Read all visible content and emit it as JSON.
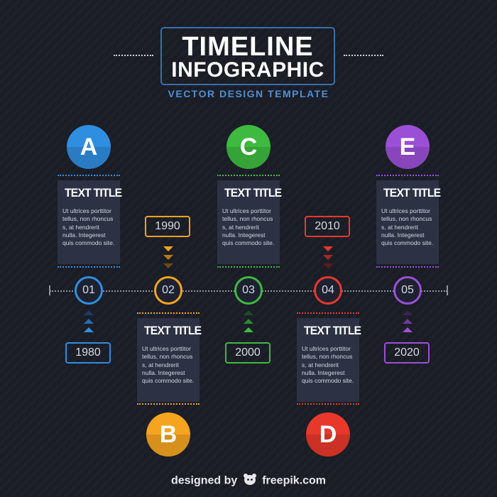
{
  "header": {
    "title_line1": "TIMELINE",
    "title_line2": "INFOGRAPHIC",
    "subtitle": "VECTOR DESIGN TEMPLATE"
  },
  "colors": {
    "background": "#1a1d26",
    "card": "#2c3244",
    "blue": "#2f8ee0",
    "orange": "#f5a41f",
    "green": "#3dba3f",
    "red": "#e8382b",
    "purple": "#9b4fd6"
  },
  "steps": [
    {
      "letter": "A",
      "number": "01",
      "year": "1980",
      "color": "#2f8ee0",
      "title": "TEXT TITLE",
      "body": "Ut ultrices porttitor tellus, non rhoncus s, at hendrerit nulla. Integerest quis commodo site."
    },
    {
      "letter": "B",
      "number": "02",
      "year": "1990",
      "color": "#f5a41f",
      "title": "TEXT TITLE",
      "body": "Ut ultrices porttitor tellus, non rhoncus s, at hendrerit nulla. Integerest quis commodo site."
    },
    {
      "letter": "C",
      "number": "03",
      "year": "2000",
      "color": "#3dba3f",
      "title": "TEXT TITLE",
      "body": "Ut ultrices porttitor tellus, non rhoncus s, at hendrerit nulla. Integerest quis commodo site."
    },
    {
      "letter": "D",
      "number": "04",
      "year": "2010",
      "color": "#e8382b",
      "title": "TEXT TITLE",
      "body": "Ut ultrices porttitor tellus, non rhoncus s, at hendrerit nulla. Integerest quis commodo site."
    },
    {
      "letter": "E",
      "number": "05",
      "year": "2020",
      "color": "#9b4fd6",
      "title": "TEXT TITLE",
      "body": "Ut ultrices porttitor tellus, non rhoncus s, at hendrerit nulla. Integerest quis commodo site."
    }
  ],
  "footer": {
    "designed_by": "designed by",
    "brand": "freepik.com",
    "logo_icon": "freepik-logo-icon"
  }
}
